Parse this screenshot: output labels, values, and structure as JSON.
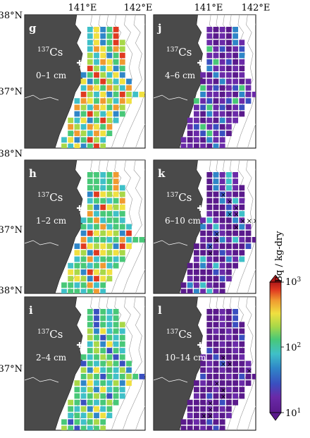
{
  "figure": {
    "lat_labels": [
      "38°N",
      "37°N",
      "38°N",
      "37°N",
      "38°N",
      "37°N"
    ],
    "lon_labels": [
      "141°E",
      "142°E",
      "141°E",
      "142°E"
    ],
    "colorbar": {
      "label": "Bq / kg-dry",
      "tick_labels": [
        "10^3",
        "10^2",
        "10^1"
      ],
      "scale": "log",
      "range": [
        10,
        1000
      ],
      "colors_low_to_high": [
        "#5a1a8c",
        "#6a2aa8",
        "#3a4fc0",
        "#2f86c8",
        "#3fc0c8",
        "#48c878",
        "#a8d848",
        "#f0e040",
        "#f09a30",
        "#e03a20",
        "#b01818"
      ]
    },
    "land_color": "#4a4a4a",
    "contour_color": "#9a9a9a"
  },
  "panels": [
    {
      "letter": "g",
      "isotope_mass": "137",
      "isotope_symbol": "Cs",
      "depth": "0–1 cm"
    },
    {
      "letter": "j",
      "isotope_mass": "137",
      "isotope_symbol": "Cs",
      "depth": "4–6 cm"
    },
    {
      "letter": "h",
      "isotope_mass": "137",
      "isotope_symbol": "Cs",
      "depth": "1–2 cm"
    },
    {
      "letter": "k",
      "isotope_mass": "137",
      "isotope_symbol": "Cs",
      "depth": "6–10 cm"
    },
    {
      "letter": "i",
      "isotope_mass": "137",
      "isotope_symbol": "Cs",
      "depth": "2–4 cm"
    },
    {
      "letter": "l",
      "isotope_mass": "137",
      "isotope_symbol": "Cs",
      "depth": "10–14 cm"
    }
  ]
}
